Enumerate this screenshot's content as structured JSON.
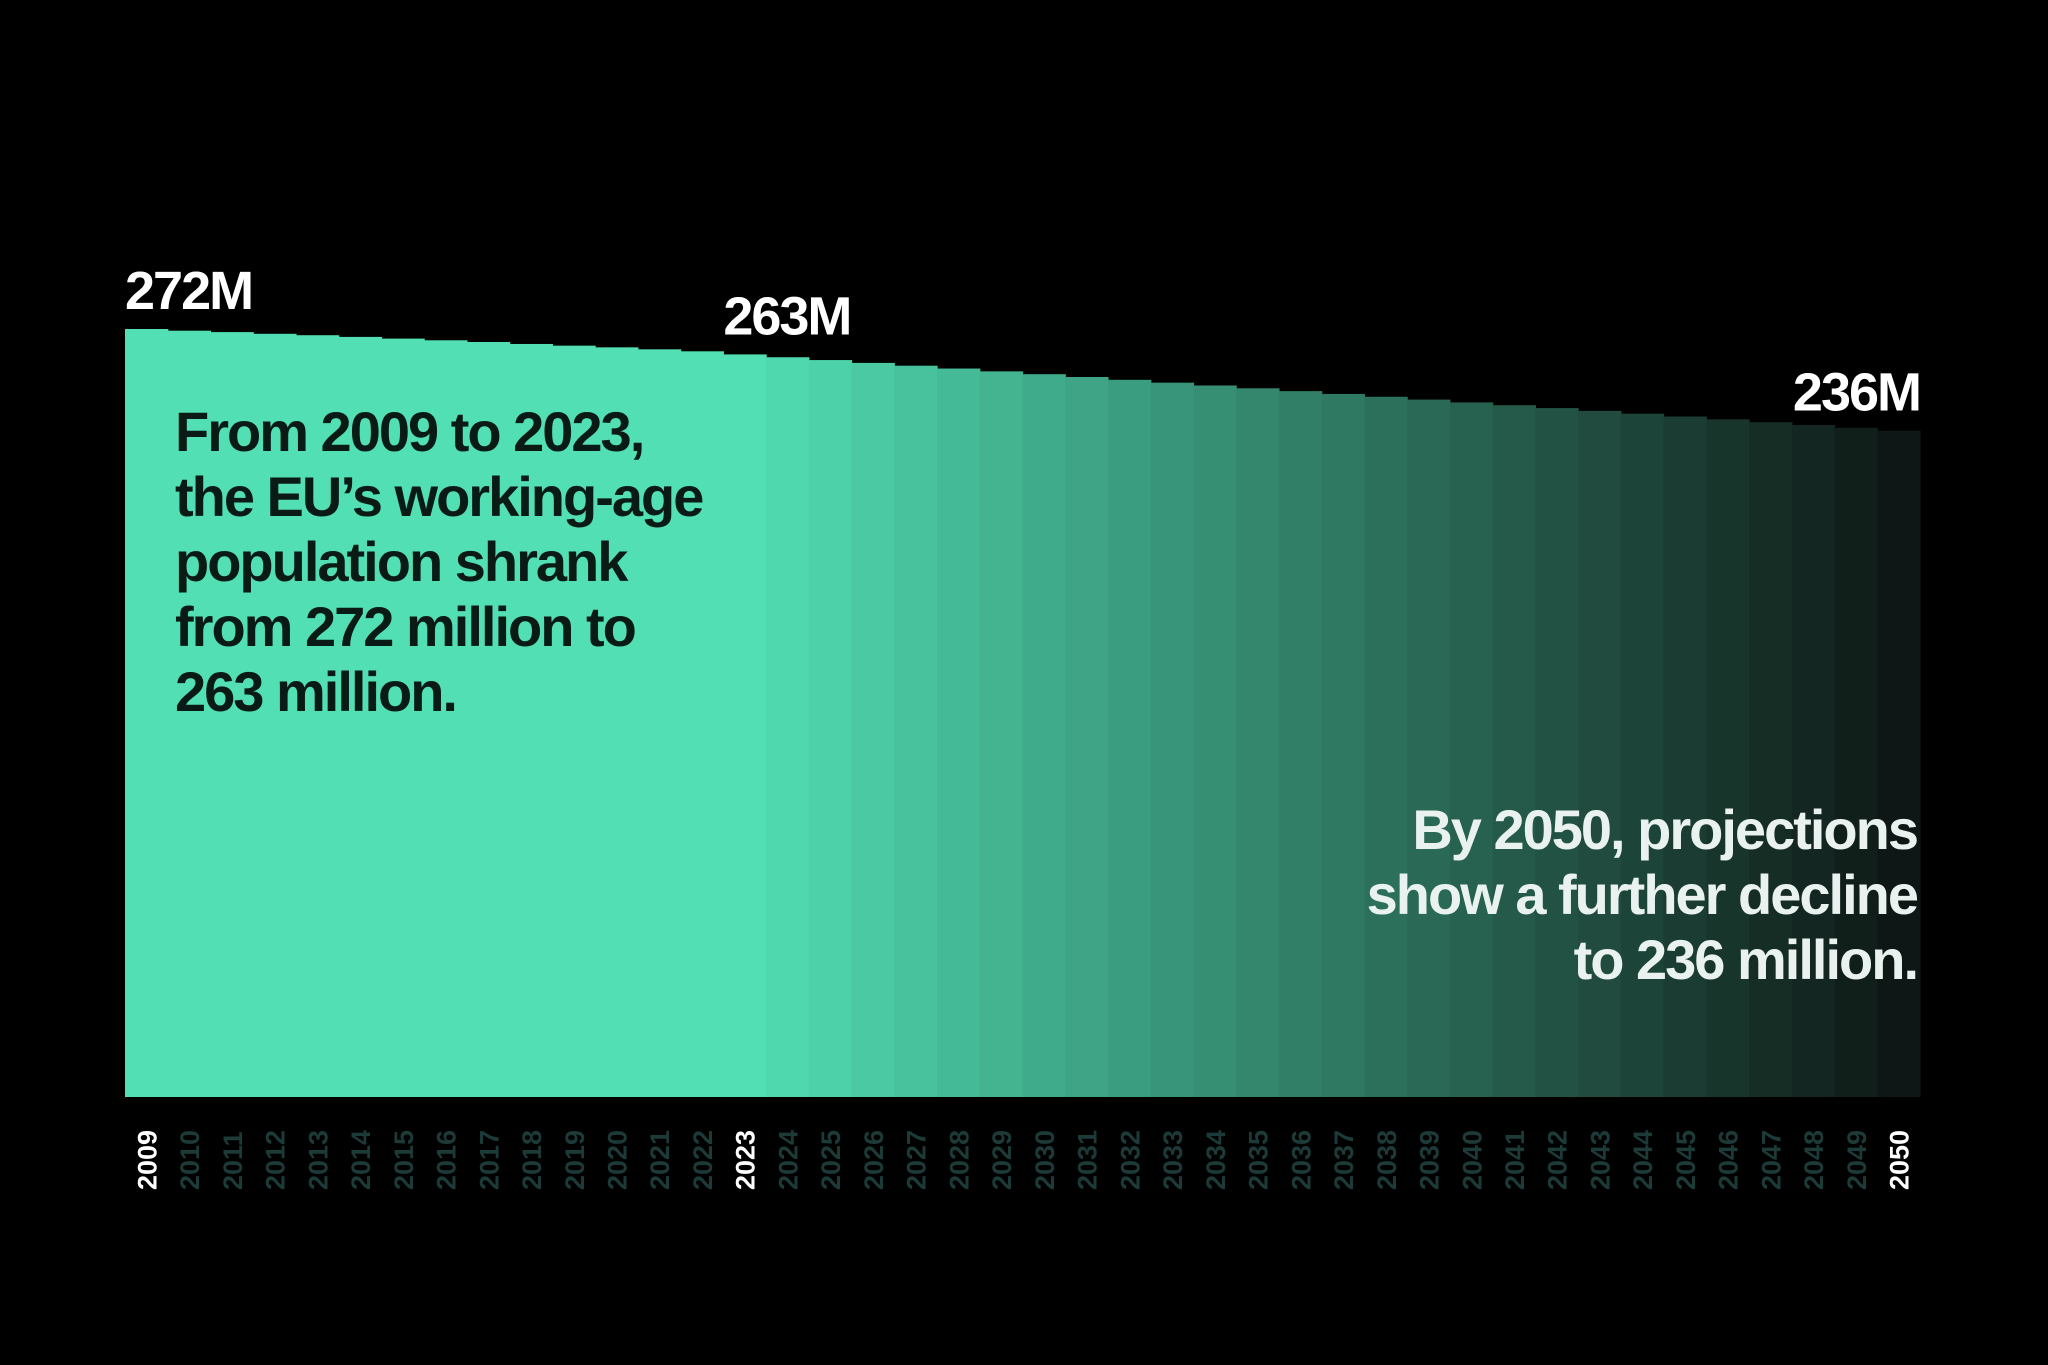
{
  "chart_data": {
    "type": "bar",
    "categories": [
      "2009",
      "2010",
      "2011",
      "2012",
      "2013",
      "2014",
      "2015",
      "2016",
      "2017",
      "2018",
      "2019",
      "2020",
      "2021",
      "2022",
      "2023",
      "2024",
      "2025",
      "2026",
      "2027",
      "2028",
      "2029",
      "2030",
      "2031",
      "2032",
      "2033",
      "2034",
      "2035",
      "2036",
      "2037",
      "2038",
      "2039",
      "2040",
      "2041",
      "2042",
      "2043",
      "2044",
      "2045",
      "2046",
      "2047",
      "2048",
      "2049",
      "2050"
    ],
    "values": [
      272,
      271.4,
      270.9,
      270.3,
      269.8,
      269.2,
      268.6,
      268,
      267.4,
      266.7,
      266.1,
      265.5,
      264.8,
      264.1,
      263,
      262,
      261,
      260,
      259,
      258,
      257,
      256,
      255,
      254,
      253,
      252,
      251,
      250,
      249,
      248,
      247,
      246,
      245,
      244,
      243,
      242,
      241,
      240,
      239,
      238,
      237,
      236
    ],
    "value_labels": [
      "272M",
      null,
      null,
      null,
      null,
      null,
      null,
      null,
      null,
      null,
      null,
      null,
      null,
      null,
      "263M",
      null,
      null,
      null,
      null,
      null,
      null,
      null,
      null,
      null,
      null,
      null,
      null,
      null,
      null,
      null,
      null,
      null,
      null,
      null,
      null,
      null,
      null,
      null,
      null,
      null,
      null,
      "236M"
    ],
    "colors": [
      "#52dfb4",
      "#52dfb4",
      "#52dfb4",
      "#52dfb4",
      "#52dfb4",
      "#52dfb4",
      "#52dfb4",
      "#52dfb4",
      "#52dfb4",
      "#52dfb4",
      "#52dfb4",
      "#52dfb4",
      "#52dfb4",
      "#52dfb4",
      "#52dfb4",
      "#4fd8ae",
      "#4dd1a8",
      "#4ac9a2",
      "#48c29c",
      "#45ba96",
      "#43b390",
      "#40ab8a",
      "#3ea485",
      "#3b9d7f",
      "#399579",
      "#368e73",
      "#34866d",
      "#317f67",
      "#2f7861",
      "#2c705b",
      "#2a6955",
      "#276150",
      "#255a4a",
      "#225244",
      "#204b3e",
      "#1d4438",
      "#1b3c32",
      "#18352c",
      "#162d26",
      "#132621",
      "#111f1b",
      "#0e1715"
    ],
    "annotations": [
      {
        "lines": [
          "From 2009 to 2023,",
          "the EU’s working-age",
          "population shrank",
          "from 272 million to",
          "263 million."
        ]
      },
      {
        "lines": [
          "By 2050, projections",
          "show a further decline",
          "to 236 million."
        ]
      }
    ]
  }
}
